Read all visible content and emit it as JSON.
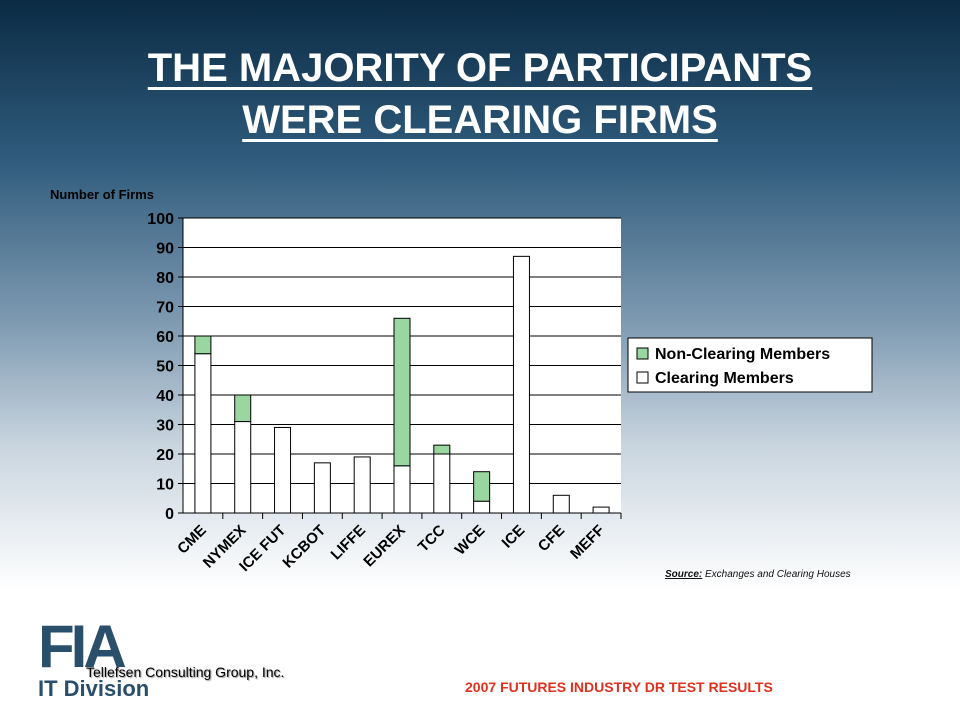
{
  "slide": {
    "title_line1": "THE MAJORITY OF PARTICIPANTS",
    "title_line2": "WERE CLEARING FIRMS",
    "source_label": "Source:",
    "source_text": "Exchanges and Clearing Houses",
    "footer": "2007 FUTURES INDUSTRY DR TEST RESULTS",
    "consulting": "Tellefsen Consulting Group, Inc.",
    "logo_main": "FIA",
    "logo_sub": "IT Division"
  },
  "chart_data": {
    "type": "bar",
    "stacked": true,
    "ylabel": "Number of Firms",
    "ylim": [
      0,
      100
    ],
    "yticks": [
      0,
      10,
      20,
      30,
      40,
      50,
      60,
      70,
      80,
      90,
      100
    ],
    "grid": true,
    "legend_position": "right",
    "categories": [
      "CME",
      "NYMEX",
      "ICE FUT",
      "KCBOT",
      "LIFFE",
      "EUREX",
      "TCC",
      "WCE",
      "ICE",
      "CFE",
      "MEFF"
    ],
    "series": [
      {
        "name": "Clearing Members",
        "color": "#ffffff",
        "values": [
          54,
          31,
          29,
          17,
          19,
          16,
          20,
          4,
          87,
          6,
          2
        ]
      },
      {
        "name": "Non-Clearing Members",
        "color": "#99d6a0",
        "values": [
          6,
          9,
          0,
          0,
          0,
          50,
          3,
          10,
          0,
          0,
          0
        ]
      }
    ]
  }
}
